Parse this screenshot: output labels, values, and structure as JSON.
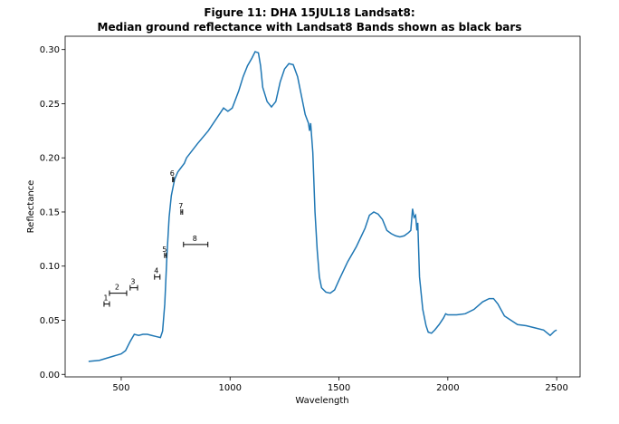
{
  "chart_data": {
    "type": "line",
    "title": [
      "Figure 11: DHA 15JUL18  Landsat8:",
      "Median ground reflectance with Landsat8 Bands shown as black bars"
    ],
    "x_label": "Wavelength",
    "y_label": "Reflectance",
    "xlim": [
      242.5,
      2607.5
    ],
    "xticks": [
      500,
      1000,
      1500,
      2000,
      2500
    ],
    "ylim": [
      -0.0023,
      0.3123
    ],
    "yticks": [
      {
        "value": 0,
        "label": "0.00"
      },
      {
        "value": 0.05,
        "label": "0.05"
      },
      {
        "value": 0.1,
        "label": "0.10"
      },
      {
        "value": 0.15,
        "label": "0.15"
      },
      {
        "value": 0.2,
        "label": "0.20"
      },
      {
        "value": 0.25,
        "label": "0.25"
      },
      {
        "value": 0.3,
        "label": "0.30"
      }
    ],
    "series": [
      {
        "color": "#1f77b4",
        "x": [
          350,
          400,
          450,
          500,
          520,
          540,
          560,
          580,
          600,
          620,
          640,
          660,
          680,
          690,
          700,
          710,
          720,
          730,
          745,
          760,
          790,
          800,
          850,
          900,
          950,
          970,
          990,
          1010,
          1040,
          1060,
          1080,
          1100,
          1115,
          1130,
          1140,
          1150,
          1170,
          1190,
          1210,
          1230,
          1250,
          1270,
          1290,
          1310,
          1330,
          1345,
          1360,
          1365,
          1370,
          1380,
          1390,
          1400,
          1410,
          1420,
          1440,
          1460,
          1480,
          1500,
          1540,
          1580,
          1620,
          1640,
          1660,
          1680,
          1700,
          1720,
          1740,
          1760,
          1780,
          1800,
          1820,
          1830,
          1838,
          1845,
          1852,
          1858,
          1862,
          1870,
          1885,
          1900,
          1910,
          1925,
          1940,
          1960,
          1980,
          1990,
          2000,
          2040,
          2080,
          2120,
          2160,
          2190,
          2210,
          2230,
          2260,
          2290,
          2320,
          2360,
          2400,
          2440,
          2470,
          2490,
          2500
        ],
        "values": [
          0.012,
          0.013,
          0.016,
          0.019,
          0.022,
          0.03,
          0.037,
          0.036,
          0.037,
          0.037,
          0.036,
          0.035,
          0.034,
          0.04,
          0.065,
          0.11,
          0.145,
          0.165,
          0.18,
          0.187,
          0.195,
          0.2,
          0.213,
          0.225,
          0.24,
          0.246,
          0.243,
          0.246,
          0.262,
          0.275,
          0.285,
          0.292,
          0.298,
          0.297,
          0.285,
          0.265,
          0.252,
          0.247,
          0.252,
          0.27,
          0.282,
          0.287,
          0.286,
          0.275,
          0.255,
          0.24,
          0.232,
          0.225,
          0.232,
          0.205,
          0.15,
          0.115,
          0.09,
          0.08,
          0.076,
          0.075,
          0.078,
          0.087,
          0.104,
          0.118,
          0.135,
          0.147,
          0.15,
          0.148,
          0.143,
          0.133,
          0.13,
          0.128,
          0.127,
          0.128,
          0.131,
          0.133,
          0.153,
          0.145,
          0.147,
          0.133,
          0.14,
          0.09,
          0.06,
          0.045,
          0.039,
          0.038,
          0.041,
          0.046,
          0.052,
          0.056,
          0.055,
          0.055,
          0.056,
          0.06,
          0.067,
          0.07,
          0.07,
          0.065,
          0.054,
          0.05,
          0.046,
          0.045,
          0.043,
          0.041,
          0.036,
          0.04,
          0.041
        ]
      }
    ],
    "bands": {
      "color": "#000000",
      "labels": [
        "1",
        "2",
        "3",
        "4",
        "5",
        "6",
        "7",
        "8"
      ],
      "xmin": [
        421,
        446,
        541,
        653,
        699,
        736,
        774,
        786
      ],
      "xmax": [
        446,
        525,
        575,
        678,
        707,
        741,
        782,
        898
      ],
      "y": [
        0.065,
        0.075,
        0.08,
        0.09,
        0.11,
        0.18,
        0.15,
        0.12
      ]
    }
  }
}
